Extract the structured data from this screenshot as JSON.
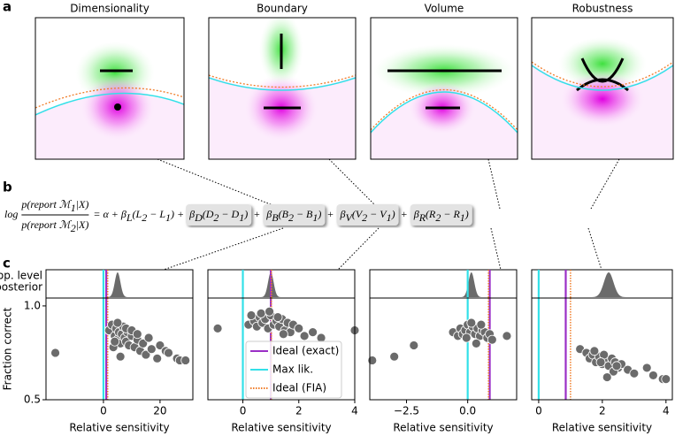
{
  "panel_a": {
    "label": "a",
    "titles": [
      "Dimensionality",
      "Boundary",
      "Volume",
      "Robustness"
    ]
  },
  "panel_b": {
    "label": "b",
    "log": "log",
    "plus": "+",
    "numerator": [
      [
        "p(report "
      ],
      [
        "ℳ",
        "1"
      ],
      [
        "|X)"
      ]
    ],
    "denominator": [
      [
        "p(report "
      ],
      [
        "ℳ",
        "2"
      ],
      [
        "|X)"
      ]
    ],
    "rhs": [
      [
        "= α + β",
        "L"
      ],
      [
        "(L",
        "2"
      ],
      [
        " − L",
        "1"
      ],
      [
        ") +"
      ]
    ],
    "terms": [
      [
        [
          "β",
          "D"
        ],
        [
          "(D",
          "2"
        ],
        [
          " − D",
          "1"
        ],
        [
          ")"
        ]
      ],
      [
        [
          "β",
          "B"
        ],
        [
          "(B",
          "2"
        ],
        [
          " − B",
          "1"
        ],
        [
          ")"
        ]
      ],
      [
        [
          "β",
          "V"
        ],
        [
          "(V",
          "2"
        ],
        [
          " − V",
          "1"
        ],
        [
          ")"
        ]
      ],
      [
        [
          "β",
          "R"
        ],
        [
          "(R",
          "2"
        ],
        [
          " − R",
          "1"
        ],
        [
          ")"
        ]
      ]
    ]
  },
  "panel_c": {
    "label": "c"
  },
  "chart_data": [
    {
      "type": "scatter",
      "xlabel": "Relative sensitivity",
      "ylabel": "Fraction correct",
      "posterior_label": [
        "Pop. level",
        "posterior"
      ],
      "xlim": [
        -20.3,
        31.6
      ],
      "xticks": [
        0,
        20
      ],
      "ylim": [
        0.5,
        1.042
      ],
      "yticks": [
        {
          "value": 0.5,
          "label": "0.5"
        },
        {
          "value": 1,
          "label": "1.0"
        }
      ],
      "x": [
        -17,
        2,
        3,
        4,
        4.5,
        5,
        5.5,
        6,
        6.5,
        7,
        7.5,
        8,
        8.5,
        9,
        10,
        11,
        12,
        13,
        14,
        15,
        16,
        17,
        19,
        20,
        22,
        23,
        26,
        27,
        29,
        3.5,
        5,
        6,
        8,
        10,
        12,
        4
      ],
      "y": [
        0.75,
        0.87,
        0.9,
        0.84,
        0.88,
        0.82,
        0.86,
        0.8,
        0.85,
        0.89,
        0.83,
        0.81,
        0.86,
        0.79,
        0.84,
        0.78,
        0.82,
        0.76,
        0.8,
        0.74,
        0.83,
        0.77,
        0.72,
        0.79,
        0.76,
        0.75,
        0.72,
        0.71,
        0.71,
        0.78,
        0.91,
        0.73,
        0.88,
        0.87,
        0.85,
        0.81
      ],
      "color": "#6b6b6b",
      "posterior": {
        "mean": 5,
        "sd": 1
      },
      "vlines": [
        {
          "name": "Ideal (exact)",
          "color": "#9a2fc6",
          "x": 1
        },
        {
          "name": "Max lik.",
          "color": "#33e0e8",
          "x": 0
        },
        {
          "name": "Ideal (FIA)",
          "color": "#f07d2a",
          "x": 1.5,
          "style": "dotted"
        }
      ]
    },
    {
      "type": "scatter",
      "xlabel": "Relative sensitivity",
      "xlim": [
        -1.25,
        4.0
      ],
      "xticks": [
        0,
        2,
        4
      ],
      "ylim": [
        0.5,
        1.042
      ],
      "legend": "lower center",
      "x": [
        -0.9,
        0.2,
        0.4,
        0.5,
        0.6,
        0.7,
        0.8,
        0.9,
        1.0,
        1.1,
        1.2,
        1.3,
        1.4,
        1.5,
        1.6,
        1.7,
        1.8,
        2.0,
        2.2,
        2.5,
        2.8,
        0.3,
        0.65,
        0.95,
        1.25,
        1.45,
        4.0
      ],
      "y": [
        0.88,
        0.9,
        0.92,
        0.89,
        0.94,
        0.91,
        0.93,
        0.88,
        0.95,
        0.9,
        0.92,
        0.89,
        0.93,
        0.87,
        0.91,
        0.86,
        0.9,
        0.88,
        0.84,
        0.86,
        0.83,
        0.95,
        0.96,
        0.97,
        0.94,
        0.85,
        0.87
      ],
      "color": "#6b6b6b",
      "posterior": {
        "mean": 1,
        "sd": 0.1
      },
      "vlines": [
        {
          "name": "Ideal (exact)",
          "color": "#9a2fc6",
          "x": 1
        },
        {
          "name": "Max lik.",
          "color": "#33e0e8",
          "x": 0
        },
        {
          "name": "Ideal (FIA)",
          "color": "#f07d2a",
          "x": 1.02,
          "style": "dotted"
        }
      ]
    },
    {
      "type": "scatter",
      "xlabel": "Relative sensitivity",
      "xlim": [
        -4.0,
        2.0
      ],
      "xticks": [
        {
          "value": -2.5,
          "label": "−2.5"
        },
        {
          "value": 0,
          "label": "0.0"
        }
      ],
      "ylim": [
        0.5,
        1.042
      ],
      "x": [
        -3.9,
        -3.0,
        -2.2,
        -0.6,
        -0.4,
        -0.3,
        -0.2,
        -0.1,
        0.0,
        0.1,
        0.2,
        0.3,
        0.4,
        0.5,
        0.6,
        0.7,
        0.8,
        0.9,
        1.0,
        1.6,
        0.15,
        0.35,
        -0.05,
        0.55
      ],
      "y": [
        0.71,
        0.73,
        0.79,
        0.86,
        0.84,
        0.88,
        0.85,
        0.87,
        0.9,
        0.86,
        0.89,
        0.85,
        0.88,
        0.84,
        0.87,
        0.86,
        0.83,
        0.85,
        0.82,
        0.84,
        0.91,
        0.8,
        0.83,
        0.9
      ],
      "color": "#6b6b6b",
      "posterior": {
        "mean": 0.15,
        "sd": 0.12
      },
      "vlines": [
        {
          "name": "Ideal (exact)",
          "color": "#9a2fc6",
          "x": 0.9
        },
        {
          "name": "Max lik.",
          "color": "#33e0e8",
          "x": 0
        },
        {
          "name": "Ideal (FIA)",
          "color": "#f07d2a",
          "x": 0.85,
          "style": "dotted"
        }
      ]
    },
    {
      "type": "scatter",
      "xlabel": "Relative sensitivity",
      "xlim": [
        -0.22,
        4.2
      ],
      "xticks": [
        0,
        2,
        4
      ],
      "ylim": [
        0.5,
        1.042
      ],
      "x": [
        1.3,
        1.5,
        1.6,
        1.7,
        1.8,
        1.9,
        2.0,
        2.1,
        2.2,
        2.3,
        2.4,
        2.5,
        2.6,
        2.8,
        3.0,
        3.4,
        3.6,
        3.9,
        4.0,
        1.75,
        2.05,
        2.35,
        2.15,
        1.95,
        2.45
      ],
      "y": [
        0.77,
        0.75,
        0.72,
        0.74,
        0.7,
        0.73,
        0.69,
        0.71,
        0.68,
        0.72,
        0.7,
        0.67,
        0.69,
        0.66,
        0.64,
        0.67,
        0.63,
        0.61,
        0.61,
        0.76,
        0.74,
        0.65,
        0.62,
        0.7,
        0.68
      ],
      "color": "#6b6b6b",
      "posterior": {
        "mean": 2.2,
        "sd": 0.15
      },
      "vlines": [
        {
          "name": "Ideal (exact)",
          "color": "#9a2fc6",
          "x": 0.85
        },
        {
          "name": "Max lik.",
          "color": "#33e0e8",
          "x": 0
        },
        {
          "name": "Ideal (FIA)",
          "color": "#f07d2a",
          "x": 1.0,
          "style": "dotted"
        }
      ]
    }
  ]
}
